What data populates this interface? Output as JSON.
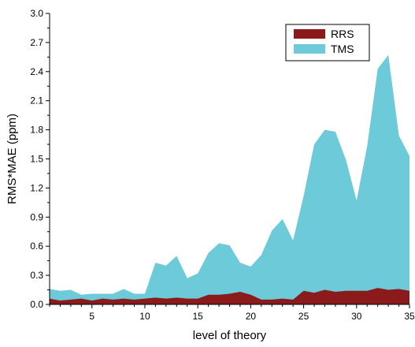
{
  "chart_data": {
    "type": "area",
    "title": "",
    "xlabel": "level of theory",
    "ylabel": "RMS*MAE (ppm)",
    "xlim": [
      1,
      35
    ],
    "ylim": [
      0,
      3.0
    ],
    "x_ticks": [
      5,
      10,
      15,
      20,
      25,
      30,
      35
    ],
    "y_ticks": [
      "0.0",
      "0.3",
      "0.6",
      "0.9",
      "1.2",
      "1.5",
      "1.8",
      "2.1",
      "2.4",
      "2.7",
      "3.0"
    ],
    "grid": false,
    "legend_position": "top-right",
    "x": [
      1,
      2,
      3,
      4,
      5,
      6,
      7,
      8,
      9,
      10,
      11,
      12,
      13,
      14,
      15,
      16,
      17,
      18,
      19,
      20,
      21,
      22,
      23,
      24,
      25,
      26,
      27,
      28,
      29,
      30,
      31,
      32,
      33,
      34,
      35
    ],
    "series": [
      {
        "name": "RRS",
        "color": "#8b1a1a",
        "values": [
          0.06,
          0.04,
          0.05,
          0.06,
          0.04,
          0.06,
          0.05,
          0.06,
          0.05,
          0.06,
          0.07,
          0.06,
          0.07,
          0.06,
          0.06,
          0.1,
          0.1,
          0.11,
          0.13,
          0.1,
          0.05,
          0.05,
          0.06,
          0.05,
          0.14,
          0.12,
          0.15,
          0.13,
          0.14,
          0.14,
          0.14,
          0.17,
          0.15,
          0.16,
          0.14
        ]
      },
      {
        "name": "TMS",
        "color": "#6ccad9",
        "values": [
          0.16,
          0.14,
          0.15,
          0.1,
          0.11,
          0.11,
          0.11,
          0.16,
          0.11,
          0.11,
          0.43,
          0.4,
          0.5,
          0.27,
          0.32,
          0.53,
          0.63,
          0.61,
          0.43,
          0.39,
          0.51,
          0.76,
          0.88,
          0.66,
          1.12,
          1.65,
          1.8,
          1.78,
          1.49,
          1.07,
          1.63,
          2.43,
          2.57,
          1.74,
          1.53
        ]
      }
    ]
  }
}
